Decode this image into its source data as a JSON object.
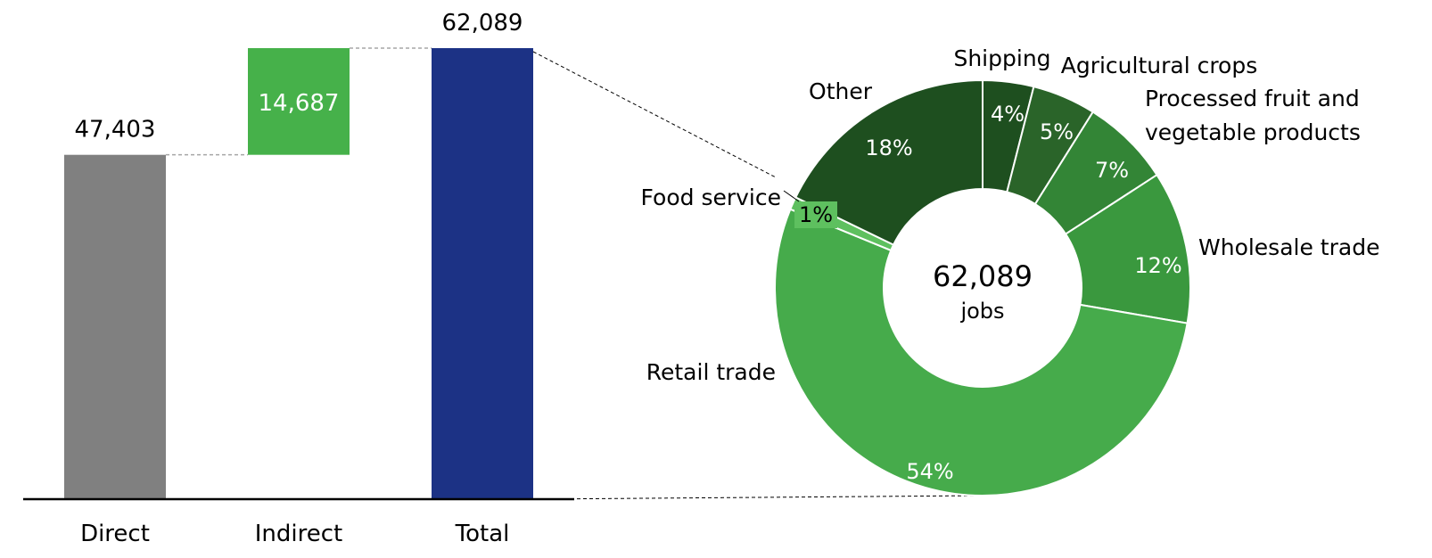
{
  "chart_data": [
    {
      "type": "bar",
      "subtype": "waterfall",
      "categories": [
        "Direct",
        "Indirect",
        "Total"
      ],
      "values": [
        47403,
        14687,
        62089
      ],
      "value_labels": [
        "47,403",
        "14,687",
        "62,089"
      ],
      "ylim": [
        0,
        62089
      ],
      "grid": false,
      "colors": [
        "#808080",
        "#46b14a",
        "#1c3285"
      ]
    },
    {
      "type": "pie",
      "subtype": "donut",
      "center_value": "62,089",
      "center_label": "jobs",
      "slices": [
        {
          "label": "Shipping",
          "value": 4,
          "value_label": "4%",
          "color": "#1e4f1f"
        },
        {
          "label": "Agricultural crops",
          "value": 5,
          "value_label": "5%",
          "color": "#2a6429"
        },
        {
          "label": "Processed fruit and vegetable products",
          "value": 7,
          "value_label": "7%",
          "color": "#338536"
        },
        {
          "label": "Wholesale trade",
          "value": 12,
          "value_label": "12%",
          "color": "#3a983e"
        },
        {
          "label": "Retail trade",
          "value": 54,
          "value_label": "54%",
          "color": "#46ab4b"
        },
        {
          "label": "Food service",
          "value": 1,
          "value_label": "1%",
          "color": "#5ec05f"
        },
        {
          "label": "Other",
          "value": 18,
          "value_label": "18%",
          "color": "#1e4f1f"
        }
      ]
    }
  ]
}
